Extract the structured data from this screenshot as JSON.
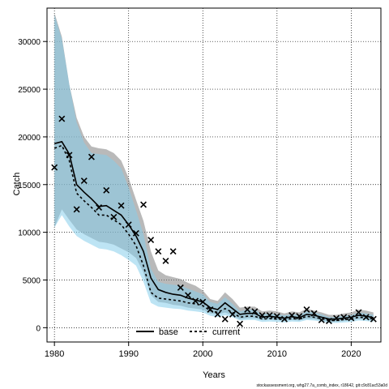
{
  "chart_data": {
    "type": "line",
    "title": "",
    "xlabel": "Years",
    "ylabel": "Catch",
    "xlim": [
      1979,
      2024
    ],
    "ylim": [
      -1500,
      33500
    ],
    "grid": true,
    "x_ticks": [
      1980,
      1990,
      2000,
      2010,
      2020
    ],
    "y_ticks": [
      0,
      5000,
      10000,
      15000,
      20000,
      25000,
      30000
    ],
    "legend": {
      "placement": "bottom-center",
      "entries": [
        "base",
        "current"
      ]
    },
    "footer": "stockassessment.org, whg27.7a_comb_index, r18642, git:c9c81ac53a0d",
    "series": [
      {
        "name": "base",
        "style": "solid",
        "line_color": "#000000",
        "band_color": "#808080",
        "x": [
          1980,
          1981,
          1982,
          1983,
          1984,
          1985,
          1986,
          1987,
          1988,
          1989,
          1990,
          1991,
          1992,
          1993,
          1994,
          1995,
          1996,
          1997,
          1998,
          1999,
          2000,
          2001,
          2002,
          2003,
          2004,
          2005,
          2006,
          2007,
          2008,
          2009,
          2010,
          2011,
          2012,
          2013,
          2014,
          2015,
          2016,
          2017,
          2018,
          2019,
          2020,
          2021,
          2022,
          2023
        ],
        "values": [
          19300,
          19500,
          18200,
          15000,
          14200,
          13500,
          12700,
          12800,
          12300,
          11800,
          10800,
          9600,
          8000,
          5200,
          4000,
          3700,
          3500,
          3400,
          3100,
          2900,
          2700,
          2100,
          1900,
          2600,
          2000,
          1400,
          1500,
          1500,
          1100,
          1200,
          1100,
          1000,
          1150,
          1050,
          1400,
          1300,
          1100,
          900,
          900,
          1000,
          1100,
          1300,
          1200,
          1050
        ],
        "lower": [
          10500,
          12400,
          11300,
          10300,
          9800,
          9400,
          9000,
          8900,
          8700,
          8300,
          7900,
          7300,
          5800,
          3400,
          2700,
          2600,
          2400,
          2300,
          2100,
          2000,
          1900,
          1500,
          1400,
          1600,
          1300,
          900,
          1000,
          1000,
          800,
          850,
          800,
          750,
          800,
          750,
          950,
          900,
          750,
          650,
          650,
          700,
          800,
          900,
          850,
          750
        ],
        "upper": [
          33000,
          30500,
          25500,
          22000,
          20000,
          19000,
          18800,
          18700,
          18300,
          17500,
          15700,
          13400,
          11200,
          8000,
          6000,
          5500,
          5300,
          5100,
          4700,
          4400,
          3900,
          3000,
          2800,
          3700,
          3000,
          2100,
          2200,
          2200,
          1700,
          1800,
          1700,
          1500,
          1700,
          1600,
          2000,
          1800,
          1600,
          1350,
          1350,
          1500,
          1600,
          1900,
          1800,
          1600
        ]
      },
      {
        "name": "current",
        "style": "dashed",
        "line_color": "#000000",
        "band_color": "#87CEEB",
        "x": [
          1980,
          1981,
          1982,
          1983,
          1984,
          1985,
          1986,
          1987,
          1988,
          1989,
          1990,
          1991,
          1992,
          1993,
          1994,
          1995,
          1996,
          1997,
          1998,
          1999,
          2000,
          2001,
          2002,
          2003,
          2004,
          2005,
          2006,
          2007,
          2008,
          2009,
          2010,
          2011,
          2012,
          2013,
          2014,
          2015,
          2016,
          2017,
          2018,
          2019,
          2020,
          2021,
          2022,
          2023
        ],
        "values": [
          18800,
          19100,
          17500,
          14100,
          13300,
          12600,
          11800,
          11800,
          11300,
          10800,
          9800,
          8600,
          6500,
          3700,
          3100,
          3000,
          2900,
          2800,
          2600,
          2500,
          2300,
          1800,
          1600,
          2000,
          1600,
          1100,
          1200,
          1200,
          900,
          950,
          900,
          850,
          950,
          900,
          1200,
          1100,
          950,
          750,
          750,
          850,
          900,
          1100,
          1050,
          900
        ],
        "lower": [
          10500,
          11800,
          10600,
          9600,
          9100,
          8700,
          8300,
          8200,
          8000,
          7600,
          7100,
          6500,
          4800,
          2600,
          2200,
          2100,
          2000,
          1950,
          1800,
          1700,
          1600,
          1250,
          1100,
          1300,
          1100,
          750,
          800,
          800,
          600,
          650,
          600,
          550,
          650,
          600,
          800,
          750,
          650,
          500,
          500,
          550,
          600,
          750,
          700,
          600
        ],
        "upper": [
          32800,
          30300,
          25500,
          21500,
          19400,
          18300,
          18200,
          18100,
          17500,
          16700,
          14700,
          12300,
          9800,
          6200,
          4800,
          4600,
          4500,
          4400,
          4100,
          3800,
          3500,
          2700,
          2500,
          3200,
          2500,
          1700,
          1900,
          1900,
          1400,
          1500,
          1400,
          1300,
          1400,
          1350,
          1700,
          1600,
          1400,
          1100,
          1100,
          1250,
          1300,
          1600,
          1500,
          1350
        ]
      },
      {
        "name": "",
        "type": "scatter",
        "marker": "x",
        "x": [
          1980,
          1981,
          1982,
          1983,
          1984,
          1985,
          1986,
          1987,
          1988,
          1989,
          1990,
          1991,
          1992,
          1993,
          1994,
          1995,
          1996,
          1997,
          1998,
          1999,
          2000,
          2001,
          2002,
          2003,
          2004,
          2005,
          2006,
          2007,
          2008,
          2009,
          2010,
          2011,
          2012,
          2013,
          2014,
          2015,
          2016,
          2017,
          2018,
          2019,
          2020,
          2021,
          2022,
          2023
        ],
        "values": [
          16800,
          21900,
          18100,
          12400,
          15400,
          17900,
          12600,
          14400,
          11600,
          12800,
          10800,
          9900,
          12900,
          9200,
          8000,
          7000,
          8000,
          4200,
          3400,
          2800,
          2700,
          1900,
          1400,
          900,
          1400,
          400,
          1900,
          1700,
          1300,
          1300,
          1200,
          900,
          1300,
          1200,
          1900,
          1500,
          800,
          700,
          1000,
          1100,
          1000,
          1600,
          1100,
          900
        ]
      }
    ]
  }
}
